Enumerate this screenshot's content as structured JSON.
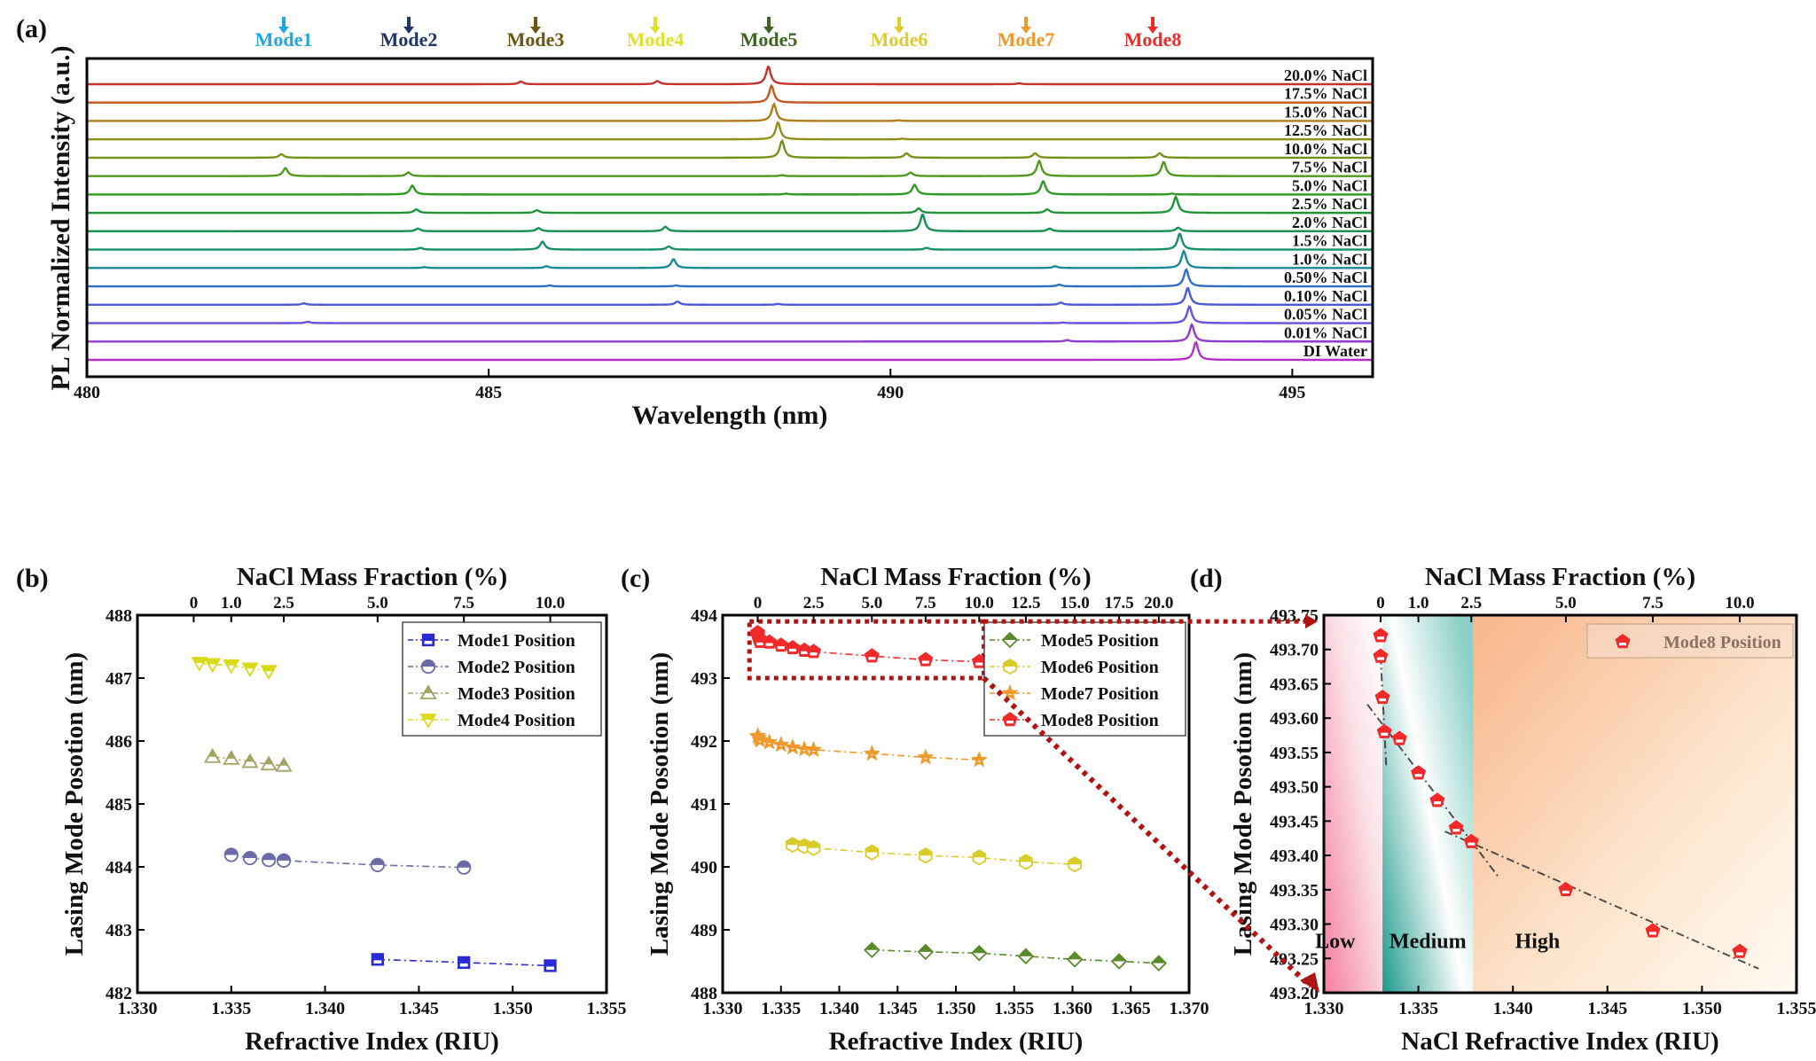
{
  "figure": {
    "panel_labels": [
      "(a)",
      "(b)",
      "(c)",
      "(d)"
    ]
  },
  "chart_data": [
    {
      "id": "a",
      "type": "line",
      "title": "",
      "xlabel": "Wavelength (nm)",
      "ylabel": "PL Normalized Intensity (a.u.)",
      "xlim": [
        480,
        496
      ],
      "xticks": [
        480,
        485,
        490,
        495
      ],
      "grid": false,
      "mode_markers": [
        {
          "label": "Mode1",
          "x": 482.45,
          "color": "#1ea7e1"
        },
        {
          "label": "Mode2",
          "x": 484.0,
          "color": "#1f3566"
        },
        {
          "label": "Mode3",
          "x": 485.65,
          "color": "#6b5612"
        },
        {
          "label": "Mode4",
          "x": 487.2,
          "color": "#e0df2a"
        },
        {
          "label": "Mode5",
          "x": 488.6,
          "color": "#3d6420"
        },
        {
          "label": "Mode6",
          "x": 490.2,
          "color": "#dccb32"
        },
        {
          "label": "Mode7",
          "x": 491.8,
          "color": "#f0992a"
        },
        {
          "label": "Mode8",
          "x": 493.4,
          "color": "#ee2b2b"
        }
      ],
      "series": [
        {
          "name": "20.0% NaCl",
          "color": "#c8302a",
          "peaks": [
            [
              485.4,
              0.15
            ],
            [
              487.1,
              0.18
            ],
            [
              488.48,
              1.0
            ],
            [
              491.6,
              0.05
            ]
          ]
        },
        {
          "name": "17.5% NaCl",
          "color": "#c4561f",
          "peaks": [
            [
              488.52,
              0.95
            ]
          ]
        },
        {
          "name": "15.0% NaCl",
          "color": "#b07d1c",
          "peaks": [
            [
              488.55,
              0.95
            ],
            [
              490.1,
              0.04
            ]
          ]
        },
        {
          "name": "12.5% NaCl",
          "color": "#8f911a",
          "peaks": [
            [
              488.6,
              0.95
            ],
            [
              490.15,
              0.04
            ]
          ]
        },
        {
          "name": "10.0% NaCl",
          "color": "#74921a",
          "peaks": [
            [
              482.42,
              0.2
            ],
            [
              488.65,
              0.95
            ],
            [
              490.2,
              0.25
            ],
            [
              491.8,
              0.25
            ],
            [
              493.35,
              0.25
            ]
          ]
        },
        {
          "name": "7.5% NaCl",
          "color": "#4f9a1c",
          "peaks": [
            [
              482.47,
              0.45
            ],
            [
              484.0,
              0.2
            ],
            [
              488.65,
              0.05
            ],
            [
              490.25,
              0.2
            ],
            [
              491.85,
              0.85
            ],
            [
              493.4,
              0.8
            ]
          ]
        },
        {
          "name": "5.0% NaCl",
          "color": "#2e9a22",
          "peaks": [
            [
              484.05,
              0.5
            ],
            [
              488.7,
              0.05
            ],
            [
              490.3,
              0.55
            ],
            [
              491.9,
              0.75
            ],
            [
              493.5,
              0.05
            ]
          ]
        },
        {
          "name": "2.5% NaCl",
          "color": "#1f9536",
          "peaks": [
            [
              484.1,
              0.2
            ],
            [
              485.6,
              0.15
            ],
            [
              490.35,
              0.25
            ],
            [
              491.95,
              0.2
            ],
            [
              493.55,
              0.9
            ]
          ]
        },
        {
          "name": "2.0% NaCl",
          "color": "#17904f",
          "peaks": [
            [
              484.12,
              0.15
            ],
            [
              485.62,
              0.18
            ],
            [
              487.2,
              0.25
            ],
            [
              490.4,
              0.95
            ],
            [
              491.98,
              0.15
            ],
            [
              493.58,
              0.2
            ]
          ]
        },
        {
          "name": "1.5% NaCl",
          "color": "#178f6f",
          "peaks": [
            [
              484.15,
              0.1
            ],
            [
              485.67,
              0.45
            ],
            [
              487.24,
              0.18
            ],
            [
              490.45,
              0.1
            ],
            [
              493.6,
              0.9
            ]
          ]
        },
        {
          "name": "1.0% NaCl",
          "color": "#1a8a95",
          "peaks": [
            [
              484.2,
              0.05
            ],
            [
              485.72,
              0.1
            ],
            [
              487.3,
              0.5
            ],
            [
              492.05,
              0.1
            ],
            [
              493.65,
              0.95
            ]
          ]
        },
        {
          "name": "0.50% NaCl",
          "color": "#2e6fc4",
          "peaks": [
            [
              485.76,
              0.05
            ],
            [
              487.33,
              0.05
            ],
            [
              492.1,
              0.1
            ],
            [
              493.68,
              0.95
            ]
          ]
        },
        {
          "name": "0.10% NaCl",
          "color": "#4d58d8",
          "peaks": [
            [
              482.7,
              0.08
            ],
            [
              487.35,
              0.18
            ],
            [
              488.6,
              0.05
            ],
            [
              492.12,
              0.12
            ],
            [
              493.7,
              0.95
            ]
          ]
        },
        {
          "name": "0.05% NaCl",
          "color": "#6a4fe0",
          "peaks": [
            [
              482.75,
              0.08
            ],
            [
              492.15,
              0.03
            ],
            [
              493.72,
              0.95
            ]
          ]
        },
        {
          "name": "0.01% NaCl",
          "color": "#8f3ccf",
          "peaks": [
            [
              492.2,
              0.08
            ],
            [
              493.75,
              0.95
            ]
          ]
        },
        {
          "name": "DI Water",
          "color": "#b22fc8",
          "peaks": [
            [
              493.8,
              1.0
            ]
          ]
        }
      ]
    },
    {
      "id": "b",
      "type": "scatter",
      "xlabel": "Refractive Index (RIU)",
      "ylabel": "Lasing Mode Posotion (nm)",
      "top_xlabel": "NaCl Mass Fraction (%)",
      "xlim": [
        1.33,
        1.355
      ],
      "ylim": [
        482,
        488
      ],
      "xticks": [
        "1.330",
        "1.335",
        "1.340",
        "1.345",
        "1.350",
        "1.355"
      ],
      "yticks": [
        "482",
        "483",
        "484",
        "485",
        "486",
        "487",
        "488"
      ],
      "top_ticks": [
        {
          "label": "0",
          "x": 1.333
        },
        {
          "label": "1.0",
          "x": 1.335
        },
        {
          "label": "2.5",
          "x": 1.3378
        },
        {
          "label": "5.0",
          "x": 1.3428
        },
        {
          "label": "7.5",
          "x": 1.3474
        },
        {
          "label": "10.0",
          "x": 1.352
        }
      ],
      "legend": "top-right",
      "series": [
        {
          "name": "Mode1 Position",
          "marker": "square",
          "color": "#2a2ad6",
          "x": [
            1.3428,
            1.3474,
            1.352
          ],
          "y": [
            482.53,
            482.48,
            482.43
          ]
        },
        {
          "name": "Mode2 Position",
          "marker": "circle",
          "color": "#6a6aa8",
          "x": [
            1.335,
            1.336,
            1.337,
            1.3378,
            1.3428,
            1.3474
          ],
          "y": [
            484.19,
            484.14,
            484.11,
            484.1,
            484.03,
            483.99
          ]
        },
        {
          "name": "Mode3 Position",
          "marker": "triangle-up",
          "color": "#a3a363",
          "x": [
            1.334,
            1.335,
            1.336,
            1.337,
            1.3378
          ],
          "y": [
            485.75,
            485.72,
            485.67,
            485.63,
            485.61
          ]
        },
        {
          "name": "Mode4 Position",
          "marker": "triangle-down",
          "color": "#dada1c",
          "x": [
            1.3333,
            1.334,
            1.335,
            1.336,
            1.337
          ],
          "y": [
            487.24,
            487.22,
            487.2,
            487.15,
            487.11
          ]
        }
      ]
    },
    {
      "id": "c",
      "type": "scatter",
      "xlabel": "Refractive Index (RIU)",
      "ylabel": "Lasing Mode Posotion (nm)",
      "top_xlabel": "NaCl Mass Fraction (%)",
      "xlim": [
        1.33,
        1.37
      ],
      "ylim": [
        488,
        494
      ],
      "xticks": [
        "1.330",
        "1.335",
        "1.340",
        "1.345",
        "1.350",
        "1.355",
        "1.360",
        "1.365",
        "1.370"
      ],
      "yticks": [
        "488",
        "489",
        "490",
        "491",
        "492",
        "493",
        "494"
      ],
      "top_ticks": [
        {
          "label": "0",
          "x": 1.333
        },
        {
          "label": "2.5",
          "x": 1.3378
        },
        {
          "label": "5.0",
          "x": 1.3428
        },
        {
          "label": "7.5",
          "x": 1.3474
        },
        {
          "label": "10.0",
          "x": 1.352
        },
        {
          "label": "12.5",
          "x": 1.356
        },
        {
          "label": "15.0",
          "x": 1.3602
        },
        {
          "label": "17.5",
          "x": 1.364
        },
        {
          "label": "20.0",
          "x": 1.3674
        }
      ],
      "legend": "top-right",
      "zoom_box": {
        "x": [
          1.3323,
          1.3524
        ],
        "y": [
          493.0,
          493.9
        ]
      },
      "series": [
        {
          "name": "Mode5 Position",
          "marker": "diamond",
          "color": "#5a8a2c",
          "x": [
            1.3428,
            1.3474,
            1.352,
            1.356,
            1.3602,
            1.364,
            1.3674
          ],
          "y": [
            488.68,
            488.65,
            488.63,
            488.58,
            488.53,
            488.5,
            488.47
          ]
        },
        {
          "name": "Mode6 Position",
          "marker": "hexagon",
          "color": "#d9cc2a",
          "x": [
            1.336,
            1.337,
            1.3378,
            1.3428,
            1.3474,
            1.352,
            1.356,
            1.3602
          ],
          "y": [
            490.35,
            490.33,
            490.3,
            490.23,
            490.18,
            490.15,
            490.08,
            490.04
          ]
        },
        {
          "name": "Mode7 Position",
          "marker": "star",
          "color": "#f0992a",
          "x": [
            1.333,
            1.3331,
            1.3332,
            1.334,
            1.335,
            1.336,
            1.337,
            1.3378,
            1.3428,
            1.3474,
            1.352
          ],
          "y": [
            492.08,
            492.05,
            492.01,
            491.98,
            491.94,
            491.9,
            491.87,
            491.86,
            491.8,
            491.74,
            491.7
          ]
        },
        {
          "name": "Mode8 Position",
          "marker": "pentagon",
          "color": "#f02a2a",
          "x": [
            1.333,
            1.333,
            1.3331,
            1.3332,
            1.334,
            1.335,
            1.336,
            1.337,
            1.3378,
            1.3428,
            1.3474,
            1.352
          ],
          "y": [
            493.72,
            493.69,
            493.63,
            493.58,
            493.57,
            493.52,
            493.48,
            493.44,
            493.42,
            493.35,
            493.29,
            493.26
          ]
        }
      ]
    },
    {
      "id": "d",
      "type": "scatter",
      "xlabel": "NaCl Refractive Index (RIU)",
      "ylabel": "Lasing Mode Posotion (nm)",
      "top_xlabel": "NaCl Mass Fraction (%)",
      "xlim": [
        1.33,
        1.355
      ],
      "ylim": [
        493.2,
        493.75
      ],
      "xticks": [
        "1.330",
        "1.335",
        "1.340",
        "1.345",
        "1.350",
        "1.355"
      ],
      "yticks": [
        "493.20",
        "493.25",
        "493.30",
        "493.35",
        "493.40",
        "493.45",
        "493.50",
        "493.55",
        "493.60",
        "493.65",
        "493.70",
        "493.75"
      ],
      "top_ticks": [
        {
          "label": "0",
          "x": 1.333
        },
        {
          "label": "1.0",
          "x": 1.335
        },
        {
          "label": "2.5",
          "x": 1.3378
        },
        {
          "label": "5.0",
          "x": 1.3428
        },
        {
          "label": "7.5",
          "x": 1.3474
        },
        {
          "label": "10.0",
          "x": 1.352
        }
      ],
      "legend": "top-right",
      "regions": [
        {
          "label": "Low",
          "x": [
            1.33,
            1.3331
          ],
          "color": "#f06a90"
        },
        {
          "label": "Medium",
          "x": [
            1.3331,
            1.3379
          ],
          "color": "#1e9a8c"
        },
        {
          "label": "High",
          "x": [
            1.3379,
            1.355
          ],
          "color": "#f5a46a"
        }
      ],
      "fit_lines": [
        {
          "x": [
            1.333,
            1.3333
          ],
          "y": [
            493.69,
            493.53
          ]
        },
        {
          "x": [
            1.3323,
            1.3392
          ],
          "y": [
            493.62,
            493.37
          ]
        },
        {
          "x": [
            1.3364,
            1.353
          ],
          "y": [
            493.435,
            493.235
          ]
        }
      ],
      "series": [
        {
          "name": "Mode8 Position",
          "marker": "pentagon",
          "color": "#f02a2a",
          "x": [
            1.333,
            1.333,
            1.3331,
            1.3332,
            1.334,
            1.335,
            1.336,
            1.337,
            1.3378,
            1.3428,
            1.3474,
            1.352
          ],
          "y": [
            493.72,
            493.69,
            493.63,
            493.58,
            493.57,
            493.52,
            493.48,
            493.44,
            493.42,
            493.35,
            493.29,
            493.26
          ]
        }
      ]
    }
  ]
}
